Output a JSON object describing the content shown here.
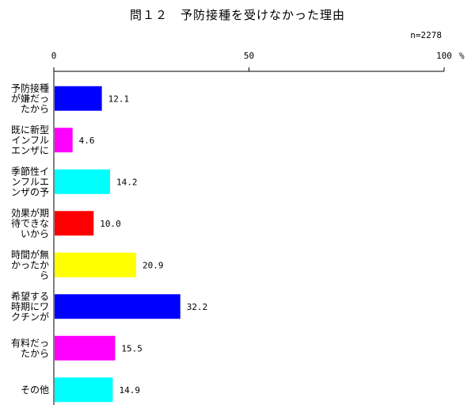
{
  "chart_data": {
    "type": "bar",
    "orientation": "horizontal",
    "title": "問１２　予防接種を受けなかった理由",
    "note": "n=2278",
    "unit": "%",
    "xlim": [
      0,
      100
    ],
    "ticks": [
      "0",
      "50",
      "100"
    ],
    "categories": [
      [
        "予防接種",
        "が嫌だっ",
        "たから"
      ],
      [
        "既に新型",
        "インフル",
        "エンザに"
      ],
      [
        "季節性イ",
        "ンフルエ",
        "ンザの予"
      ],
      [
        "効果が期",
        "待できな",
        "いから"
      ],
      [
        "時間が無",
        "かったか",
        "ら"
      ],
      [
        "希望する",
        "時期にワ",
        "クチンが"
      ],
      [
        "有料だっ",
        "たから"
      ],
      [
        "その他"
      ]
    ],
    "values": [
      12.1,
      4.6,
      14.2,
      10.0,
      20.9,
      32.2,
      15.5,
      14.9
    ],
    "value_labels": [
      "12.1",
      "4.6",
      "14.2",
      "10.0",
      "20.9",
      "32.2",
      "15.5",
      "14.9"
    ],
    "colors": [
      "#0000ff",
      "#ff00ff",
      "#00ffff",
      "#ff0000",
      "#ffff00",
      "#0000ff",
      "#ff00ff",
      "#00ffff"
    ],
    "grid": false,
    "legend": "none"
  }
}
